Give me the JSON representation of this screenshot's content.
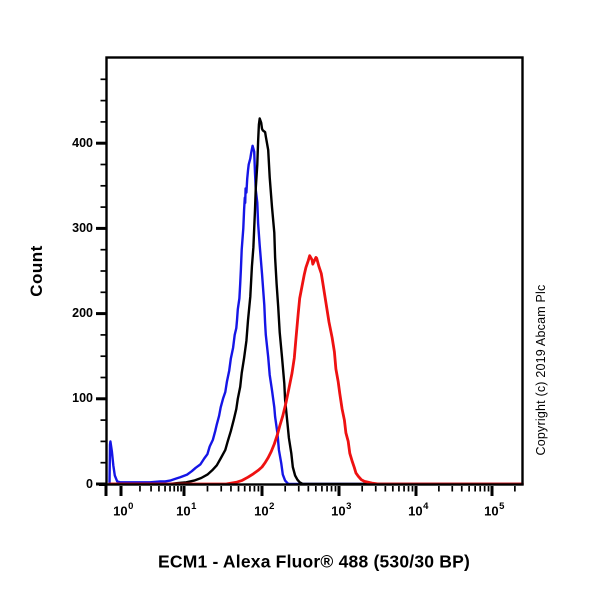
{
  "title": "ECM1 - Alexa Fluor® 488 (530/30 BP)",
  "copyright": "Copyright (c) 2019 Abcam Plc",
  "axes": {
    "y_label": "Count",
    "y_tick_labels": [
      "0",
      "100",
      "200",
      "300",
      "400"
    ],
    "y_tick_values": [
      0,
      100,
      200,
      300,
      400
    ],
    "x_tick_base": "10",
    "x_tick_exponents": [
      "0",
      "1",
      "2",
      "3",
      "4",
      "5"
    ]
  },
  "chart_data": {
    "type": "line",
    "subtype": "flow-cytometry-histogram-overlay",
    "title": "ECM1 - Alexa Fluor® 488 (530/30 BP)",
    "xlabel": "ECM1 - Alexa Fluor® 488 (530/30 BP)",
    "ylabel": "Count",
    "x_scale": "log10",
    "x_range_log10": [
      -0.24,
      5.4
    ],
    "ylim": [
      0,
      500
    ],
    "grid": false,
    "legend": "none",
    "y_major_tick_step": 100,
    "y_minor_tick_step": 25,
    "series": [
      {
        "name": "blue-histogram",
        "color": "#1515e6",
        "peak": {
          "log10_x": 1.88,
          "count": 397
        },
        "points": [
          [
            -0.24,
            0
          ],
          [
            -0.23,
            46
          ],
          [
            -0.22,
            50
          ],
          [
            -0.19,
            38
          ],
          [
            -0.16,
            22
          ],
          [
            -0.13,
            10
          ],
          [
            -0.08,
            3
          ],
          [
            -0.02,
            2
          ],
          [
            0.3,
            2
          ],
          [
            0.46,
            2
          ],
          [
            0.62,
            3
          ],
          [
            0.7,
            3
          ],
          [
            0.78,
            4
          ],
          [
            0.86,
            6
          ],
          [
            0.94,
            8
          ],
          [
            1.04,
            11
          ],
          [
            1.1,
            15
          ],
          [
            1.15,
            19
          ],
          [
            1.21,
            23
          ],
          [
            1.26,
            30
          ],
          [
            1.3,
            35
          ],
          [
            1.33,
            44
          ],
          [
            1.37,
            52
          ],
          [
            1.4,
            62
          ],
          [
            1.42,
            70
          ],
          [
            1.45,
            80
          ],
          [
            1.47,
            90
          ],
          [
            1.5,
            100
          ],
          [
            1.53,
            108
          ],
          [
            1.55,
            120
          ],
          [
            1.58,
            133
          ],
          [
            1.6,
            147
          ],
          [
            1.63,
            160
          ],
          [
            1.65,
            175
          ],
          [
            1.67,
            183
          ],
          [
            1.68,
            192
          ],
          [
            1.69,
            205
          ],
          [
            1.71,
            218
          ],
          [
            1.72,
            235
          ],
          [
            1.73,
            252
          ],
          [
            1.74,
            275
          ],
          [
            1.76,
            300
          ],
          [
            1.77,
            322
          ],
          [
            1.78,
            336
          ],
          [
            1.785,
            330
          ],
          [
            1.79,
            347
          ],
          [
            1.8,
            342
          ],
          [
            1.81,
            358
          ],
          [
            1.82,
            368
          ],
          [
            1.83,
            375
          ],
          [
            1.85,
            382
          ],
          [
            1.86,
            388
          ],
          [
            1.87,
            393
          ],
          [
            1.88,
            397
          ],
          [
            1.9,
            390
          ],
          [
            1.91,
            365
          ],
          [
            1.92,
            345
          ],
          [
            1.94,
            330
          ],
          [
            1.95,
            306
          ],
          [
            1.97,
            280
          ],
          [
            2.0,
            247
          ],
          [
            2.03,
            210
          ],
          [
            2.04,
            189
          ],
          [
            2.05,
            175
          ],
          [
            2.08,
            149
          ],
          [
            2.1,
            128
          ],
          [
            2.13,
            110
          ],
          [
            2.16,
            90
          ],
          [
            2.17,
            79
          ],
          [
            2.2,
            60
          ],
          [
            2.22,
            40
          ],
          [
            2.25,
            24
          ],
          [
            2.27,
            11
          ],
          [
            2.3,
            4
          ],
          [
            2.33,
            1
          ],
          [
            2.35,
            0
          ],
          [
            5.4,
            0
          ]
        ]
      },
      {
        "name": "black-histogram",
        "color": "#000000",
        "peak": {
          "log10_x": 1.96,
          "count": 429
        },
        "points": [
          [
            -0.24,
            0
          ],
          [
            0.78,
            0
          ],
          [
            0.9,
            1
          ],
          [
            1.03,
            2
          ],
          [
            1.13,
            4
          ],
          [
            1.22,
            7
          ],
          [
            1.3,
            11
          ],
          [
            1.36,
            16
          ],
          [
            1.42,
            22
          ],
          [
            1.47,
            30
          ],
          [
            1.53,
            40
          ],
          [
            1.56,
            50
          ],
          [
            1.6,
            62
          ],
          [
            1.64,
            76
          ],
          [
            1.67,
            88
          ],
          [
            1.69,
            100
          ],
          [
            1.72,
            114
          ],
          [
            1.74,
            130
          ],
          [
            1.77,
            148
          ],
          [
            1.8,
            168
          ],
          [
            1.82,
            192
          ],
          [
            1.85,
            220
          ],
          [
            1.87,
            255
          ],
          [
            1.89,
            278
          ],
          [
            1.9,
            300
          ],
          [
            1.91,
            322
          ],
          [
            1.92,
            348
          ],
          [
            1.94,
            375
          ],
          [
            1.95,
            402
          ],
          [
            1.96,
            422
          ],
          [
            1.97,
            429
          ],
          [
            1.99,
            424
          ],
          [
            2.0,
            417
          ],
          [
            2.01,
            415
          ],
          [
            2.04,
            413
          ],
          [
            2.05,
            408
          ],
          [
            2.08,
            392
          ],
          [
            2.1,
            360
          ],
          [
            2.13,
            325
          ],
          [
            2.16,
            295
          ],
          [
            2.17,
            266
          ],
          [
            2.19,
            235
          ],
          [
            2.21,
            208
          ],
          [
            2.23,
            178
          ],
          [
            2.26,
            149
          ],
          [
            2.29,
            118
          ],
          [
            2.3,
            99
          ],
          [
            2.33,
            72
          ],
          [
            2.35,
            54
          ],
          [
            2.38,
            36
          ],
          [
            2.4,
            20
          ],
          [
            2.43,
            10
          ],
          [
            2.46,
            5
          ],
          [
            2.49,
            2
          ],
          [
            2.53,
            0
          ],
          [
            5.4,
            0
          ]
        ]
      },
      {
        "name": "red-histogram",
        "color": "#ee1111",
        "peak": {
          "log10_x": 2.62,
          "count": 268
        },
        "points": [
          [
            -0.24,
            0
          ],
          [
            1.54,
            0
          ],
          [
            1.67,
            2
          ],
          [
            1.74,
            4
          ],
          [
            1.82,
            8
          ],
          [
            1.89,
            12
          ],
          [
            1.95,
            16
          ],
          [
            2.0,
            20
          ],
          [
            2.04,
            25
          ],
          [
            2.08,
            31
          ],
          [
            2.12,
            38
          ],
          [
            2.16,
            47
          ],
          [
            2.2,
            58
          ],
          [
            2.23,
            68
          ],
          [
            2.27,
            80
          ],
          [
            2.31,
            95
          ],
          [
            2.35,
            112
          ],
          [
            2.39,
            130
          ],
          [
            2.42,
            148
          ],
          [
            2.44,
            170
          ],
          [
            2.47,
            200
          ],
          [
            2.49,
            218
          ],
          [
            2.52,
            232
          ],
          [
            2.55,
            246
          ],
          [
            2.57,
            254
          ],
          [
            2.6,
            262
          ],
          [
            2.62,
            268
          ],
          [
            2.65,
            263
          ],
          [
            2.66,
            258
          ],
          [
            2.68,
            262
          ],
          [
            2.7,
            266
          ],
          [
            2.71,
            265
          ],
          [
            2.74,
            255
          ],
          [
            2.77,
            247
          ],
          [
            2.79,
            236
          ],
          [
            2.83,
            213
          ],
          [
            2.87,
            190
          ],
          [
            2.91,
            172
          ],
          [
            2.94,
            155
          ],
          [
            2.96,
            135
          ],
          [
            2.99,
            120
          ],
          [
            3.01,
            106
          ],
          [
            3.04,
            88
          ],
          [
            3.07,
            75
          ],
          [
            3.09,
            60
          ],
          [
            3.12,
            50
          ],
          [
            3.14,
            36
          ],
          [
            3.17,
            27
          ],
          [
            3.2,
            19
          ],
          [
            3.22,
            13
          ],
          [
            3.25,
            9
          ],
          [
            3.29,
            5
          ],
          [
            3.33,
            3
          ],
          [
            3.38,
            2
          ],
          [
            3.43,
            1
          ],
          [
            3.51,
            0
          ],
          [
            5.4,
            0
          ]
        ]
      }
    ]
  }
}
